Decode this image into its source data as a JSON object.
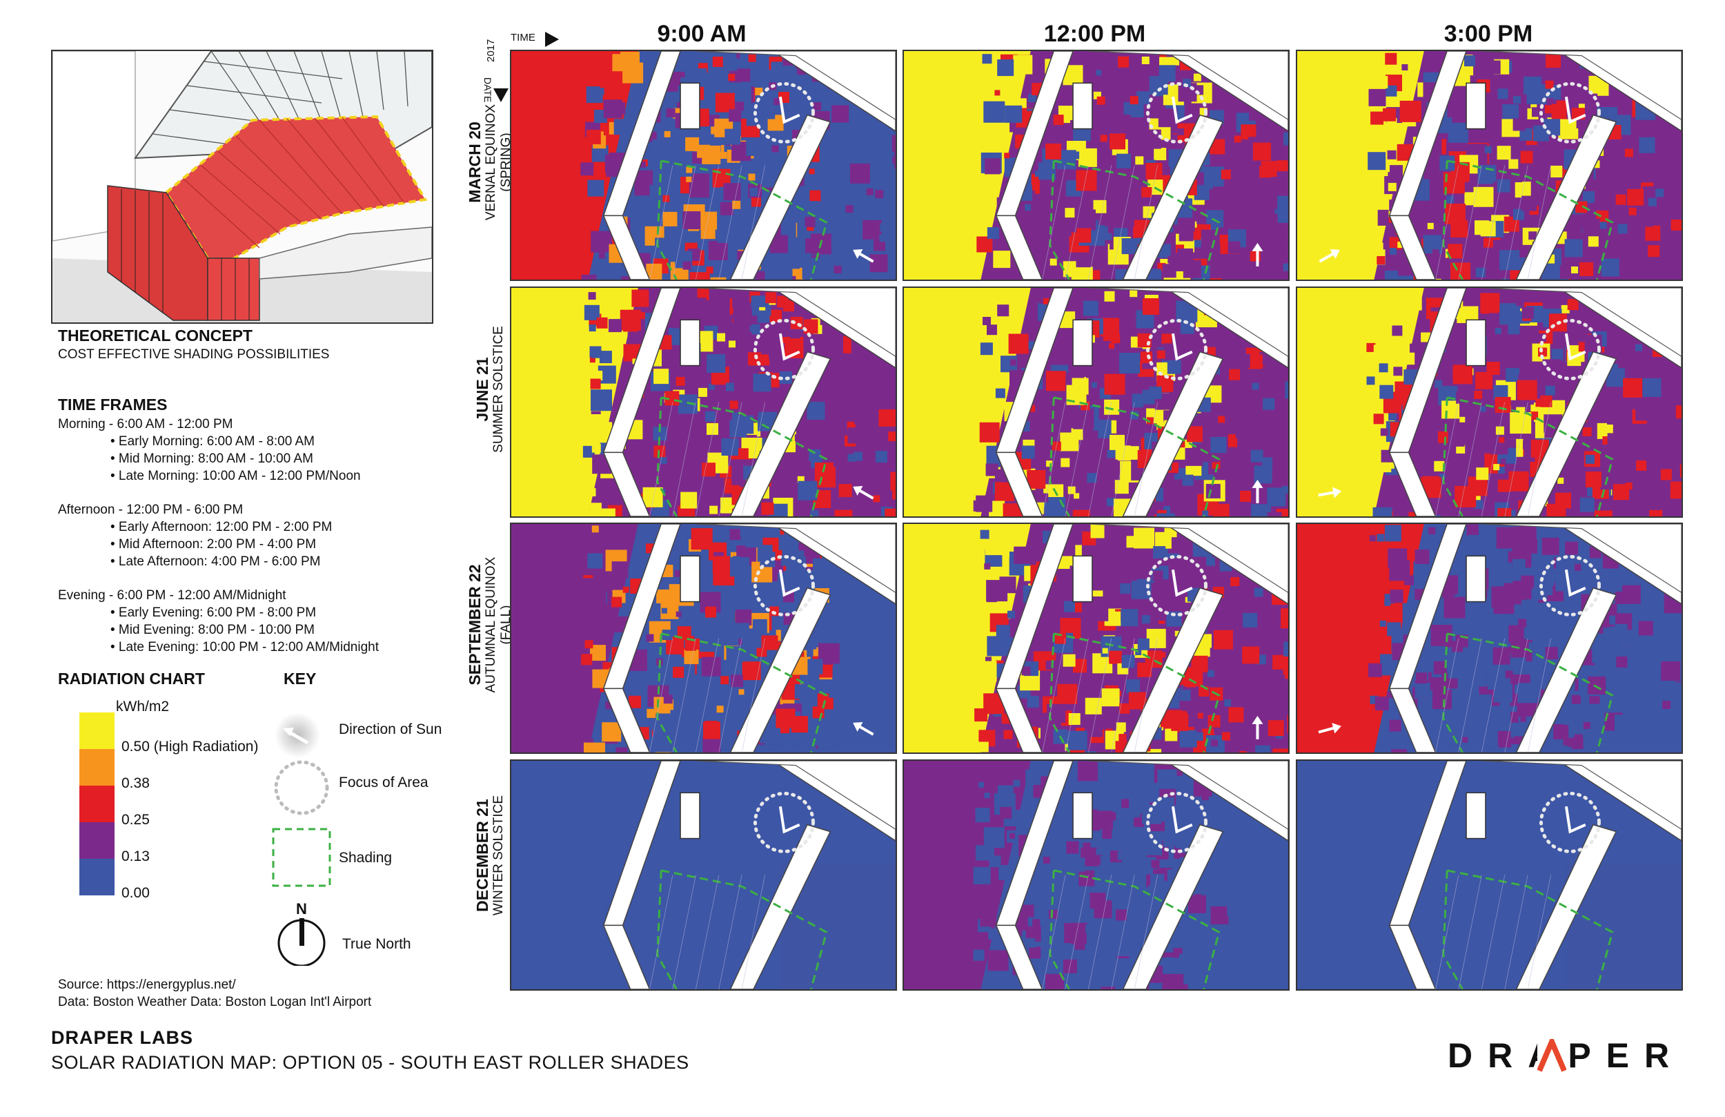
{
  "concept": {
    "title": "THEORETICAL CONCEPT",
    "subtitle": "COST EFFECTIVE SHADING POSSIBILITIES"
  },
  "time_frames": {
    "title": "TIME FRAMES",
    "groups": [
      {
        "head": "Morning - 6:00 AM - 12:00 PM",
        "items": [
          "• Early Morning: 6:00 AM - 8:00 AM",
          "• Mid Morning: 8:00 AM - 10:00 AM",
          "• Late Morning: 10:00 AM - 12:00 PM/Noon"
        ]
      },
      {
        "head": "Afternoon - 12:00 PM - 6:00 PM",
        "items": [
          "• Early Afternoon: 12:00 PM - 2:00 PM",
          "• Mid Afternoon: 2:00 PM - 4:00 PM",
          "• Late Afternoon: 4:00 PM - 6:00 PM"
        ]
      },
      {
        "head": "Evening - 6:00 PM - 12:00 AM/Midnight",
        "items": [
          "• Early Evening: 6:00 PM - 8:00 PM",
          "• Mid Evening: 8:00 PM - 10:00 PM",
          "• Late Evening: 10:00 PM - 12:00 AM/Midnight"
        ]
      }
    ]
  },
  "radiation_chart": {
    "title": "RADIATION CHART",
    "unit": "kWh/m2",
    "levels": [
      {
        "value": "0.50",
        "note": "(High Radiation)",
        "color": "#f7ee22"
      },
      {
        "value": "0.38",
        "note": "",
        "color": "#f7941e"
      },
      {
        "value": "0.25",
        "note": "",
        "color": "#e31e24"
      },
      {
        "value": "0.13",
        "note": "",
        "color": "#7b2a8c"
      },
      {
        "value": "0.00",
        "note": "",
        "color": "#3d56a6"
      }
    ]
  },
  "key": {
    "title": "KEY",
    "items": [
      "Direction of Sun",
      "Focus of Area",
      "Shading",
      "True North"
    ],
    "north_letter": "N"
  },
  "source": {
    "line1": "Source: https://energyplus.net/",
    "line2": "Data: Boston Weather Data: Boston Logan Int'l Airport"
  },
  "axis": {
    "time_label": "TIME",
    "date_label": "DATE",
    "year": "2017"
  },
  "columns": [
    "9:00 AM",
    "12:00 PM",
    "3:00 PM"
  ],
  "rows": [
    {
      "date": "MARCH 20",
      "season": "VERNAL EQUINOX",
      "note": "(SPRING)"
    },
    {
      "date": "JUNE 21",
      "season": "SUMMER SOLSTICE",
      "note": ""
    },
    {
      "date": "SEPTEMBER 22",
      "season": "AUTUMNAL EQUINOX",
      "note": "(FALL)"
    },
    {
      "date": "DECEMBER 21",
      "season": "WINTER SOLSTICE",
      "note": ""
    }
  ],
  "panels": [
    [
      "mixed-red",
      "yellow-west",
      "yellow-west"
    ],
    [
      "yellow-west",
      "yellow-west",
      "yellow-west"
    ],
    [
      "blue-mixed",
      "yellow-west",
      "red-west"
    ],
    [
      "blue",
      "purple-west",
      "blue"
    ]
  ],
  "footer": {
    "title": "DRAPER LABS",
    "subtitle": "SOLAR RADIATION MAP: OPTION 05 - SOUTH EAST ROLLER SHADES",
    "logo": "DRAPER"
  }
}
